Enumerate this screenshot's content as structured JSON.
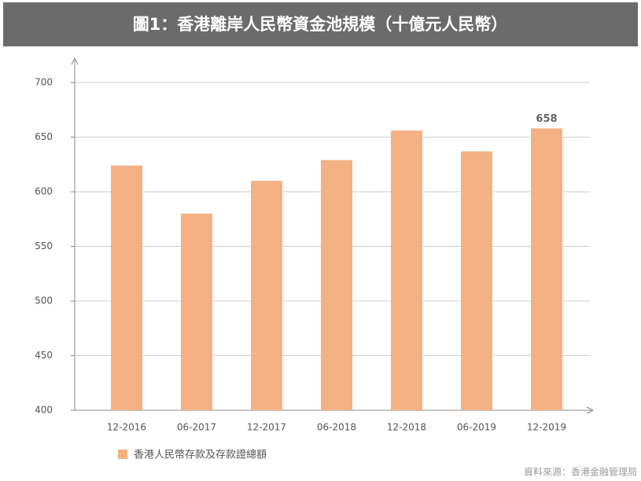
{
  "chart_data": {
    "type": "bar",
    "title": "圖1：香港離岸人民幣資金池規模（十億元人民幣）",
    "categories": [
      "12-2016",
      "06-2017",
      "12-2017",
      "06-2018",
      "12-2018",
      "06-2019",
      "12-2019"
    ],
    "series": [
      {
        "name": "香港人民幣存款及存款證總額",
        "color": "#f4b183",
        "values": [
          624,
          580,
          610,
          629,
          656,
          637,
          658
        ]
      }
    ],
    "value_labels": [
      null,
      null,
      null,
      null,
      null,
      null,
      "658"
    ],
    "ylim": [
      400,
      700
    ],
    "yticks": [
      400,
      450,
      500,
      550,
      600,
      650,
      700
    ],
    "grid": true,
    "source": "資料來源：香港金融管理局"
  }
}
